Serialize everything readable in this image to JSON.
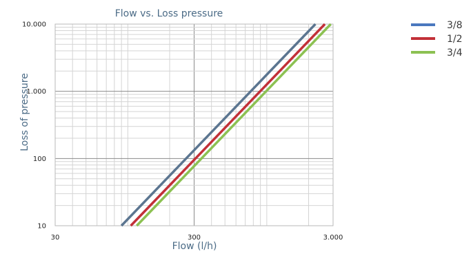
{
  "chart_data": {
    "type": "line",
    "title": "Flow vs. Loss pressure",
    "xlabel": "Flow (l/h)",
    "ylabel": "Loss of pressure",
    "x_scale": "log",
    "y_scale": "log",
    "xlim": [
      30,
      3000
    ],
    "ylim": [
      10,
      10000
    ],
    "grid": true,
    "legend": "right",
    "x_ticks": [
      {
        "value": 30,
        "label": "30"
      },
      {
        "value": 300,
        "label": "300"
      },
      {
        "value": 3000,
        "label": "3.000"
      }
    ],
    "y_ticks": [
      {
        "value": 10,
        "label": "10"
      },
      {
        "value": 100,
        "label": "100"
      },
      {
        "value": 1000,
        "label": "1.000"
      },
      {
        "value": 10000,
        "label": "10.000"
      }
    ],
    "series": [
      {
        "name": "3/8",
        "color": "#5b7590",
        "legend_color": "#4a78be",
        "points": [
          [
            90,
            10
          ],
          [
            2240,
            10000
          ]
        ]
      },
      {
        "name": "1/2",
        "color": "#c23038",
        "legend_color": "#c23038",
        "points": [
          [
            105,
            10
          ],
          [
            2620,
            10000
          ]
        ]
      },
      {
        "name": "3/4",
        "color": "#8cc152",
        "legend_color": "#8cc152",
        "points": [
          [
            116,
            10
          ],
          [
            2890,
            10000
          ]
        ]
      }
    ]
  }
}
